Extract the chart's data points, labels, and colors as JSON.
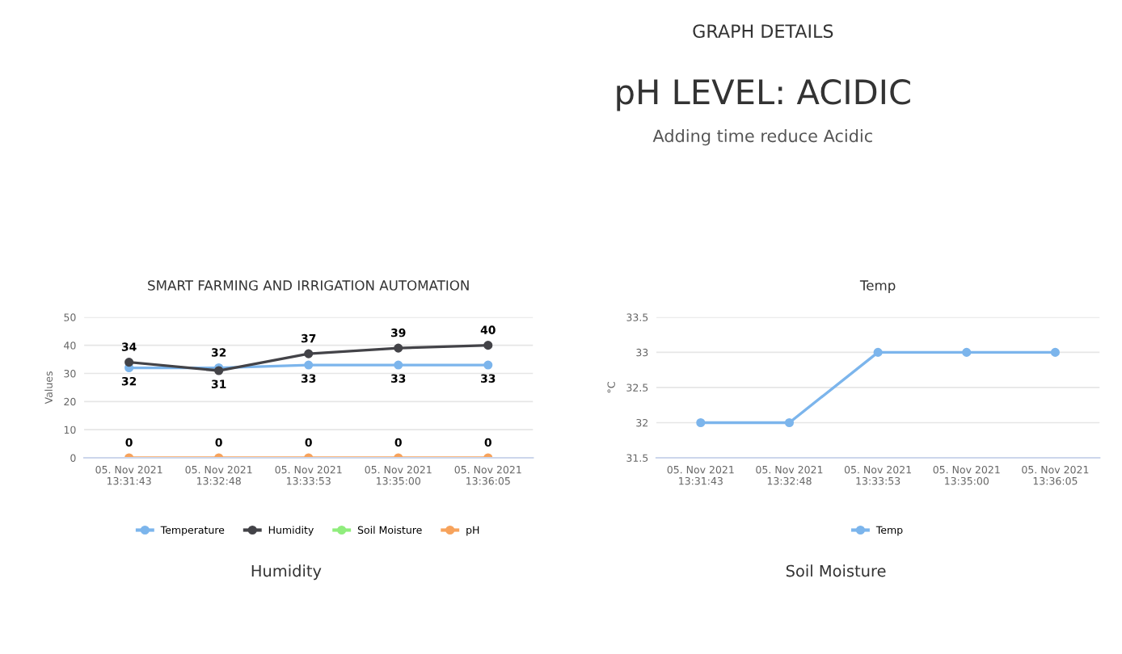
{
  "chart_data": [
    {
      "type": "other",
      "title": "GRAPH DETAILS",
      "subtitle": "pH LEVEL: ACIDIC",
      "annotations": [
        "Adding time reduce Acidic"
      ]
    },
    {
      "type": "line",
      "title": "SMART FARMING AND IRRIGATION AUTOMATION",
      "ylabel": "Values",
      "categories": [
        "05. Nov 2021 13:31:43",
        "05. Nov 2021 13:32:48",
        "05. Nov 2021 13:33:53",
        "05. Nov 2021 13:35:00",
        "05. Nov 2021 13:36:05"
      ],
      "series": [
        {
          "name": "Temperature",
          "color": "#7cb5ec",
          "values": [
            32,
            32,
            33,
            33,
            33
          ],
          "value_labels": [
            "32",
            "32",
            "33",
            "33",
            "33"
          ]
        },
        {
          "name": "Humidity",
          "color": "#434348",
          "values": [
            34,
            31,
            37,
            39,
            40
          ],
          "value_labels": [
            "34",
            "31",
            "37",
            "39",
            "40"
          ]
        },
        {
          "name": "Soil Moisture",
          "color": "#90ed7d",
          "values": [
            null,
            null,
            null,
            null,
            null
          ]
        },
        {
          "name": "pH",
          "color": "#f7a35c",
          "values": [
            0,
            0,
            0,
            0,
            0
          ],
          "value_labels": [
            "0",
            "0",
            "0",
            "0",
            "0"
          ]
        }
      ],
      "ylim": [
        0,
        50
      ],
      "yticks": [
        0,
        10,
        20,
        30,
        40,
        50
      ],
      "grid": "y",
      "legend": "bottom",
      "marker": "circle"
    },
    {
      "type": "line",
      "title": "Temp",
      "ylabel": "°C",
      "categories": [
        "05. Nov 2021 13:31:43",
        "05. Nov 2021 13:32:48",
        "05. Nov 2021 13:33:53",
        "05. Nov 2021 13:35:00",
        "05. Nov 2021 13:36:05"
      ],
      "series": [
        {
          "name": "Temp",
          "color": "#7cb5ec",
          "values": [
            32,
            32,
            33,
            33,
            33
          ]
        }
      ],
      "ylim": [
        31.5,
        33.5
      ],
      "yticks": [
        31.5,
        32,
        32.5,
        33,
        33.5
      ],
      "grid": "y",
      "legend": "bottom",
      "marker": "circle"
    },
    {
      "type": "other",
      "title": "Humidity"
    },
    {
      "type": "other",
      "title": "Soil Moisture"
    }
  ]
}
